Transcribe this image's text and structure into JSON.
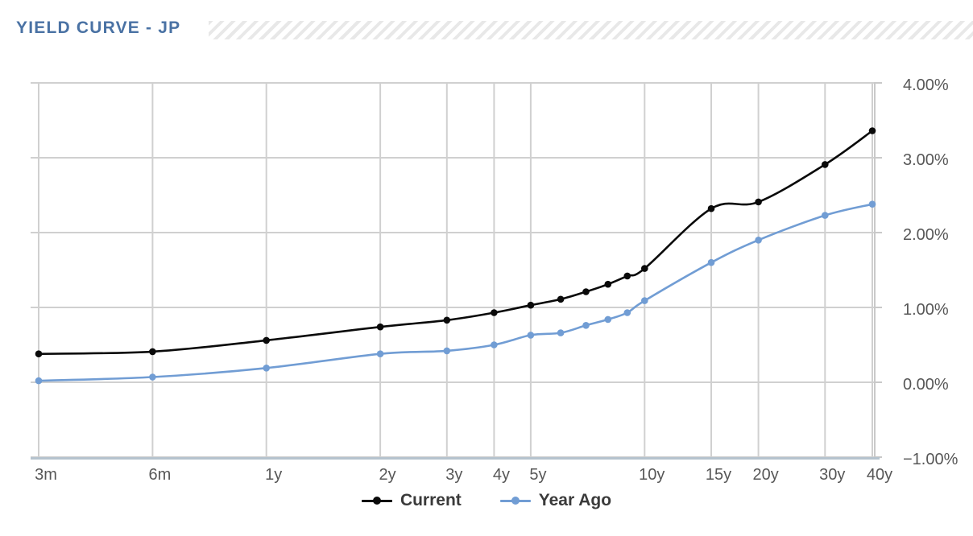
{
  "header": {
    "title": "YIELD CURVE - JP"
  },
  "chart_data": {
    "type": "line",
    "title": "YIELD CURVE - JP",
    "x_scale": "log",
    "grid": true,
    "legend_position": "bottom",
    "categories": [
      "3m",
      "6m",
      "1y",
      "2y",
      "3y",
      "4y",
      "5y",
      "6y",
      "7y",
      "8y",
      "9y",
      "10y",
      "15y",
      "20y",
      "30y",
      "40y"
    ],
    "x_years": [
      0.25,
      0.5,
      1,
      2,
      3,
      4,
      5,
      6,
      7,
      8,
      9,
      10,
      15,
      20,
      30,
      40
    ],
    "series": [
      {
        "name": "Current",
        "color": "#0a0a0a",
        "values": [
          0.38,
          0.41,
          0.56,
          0.74,
          0.83,
          0.93,
          1.03,
          1.11,
          1.21,
          1.31,
          1.42,
          1.52,
          2.32,
          2.41,
          2.91,
          3.36
        ]
      },
      {
        "name": "Year Ago",
        "color": "#719dd4",
        "values": [
          0.02,
          0.07,
          0.19,
          0.38,
          0.42,
          0.5,
          0.63,
          0.66,
          0.76,
          0.84,
          0.93,
          1.09,
          1.6,
          1.9,
          2.23,
          2.38
        ]
      }
    ],
    "x_axis": {
      "labels": [
        "3m",
        "6m",
        "1y",
        "2y",
        "3y",
        "4y",
        "5y",
        "10y",
        "15y",
        "20y",
        "30y",
        "40y"
      ],
      "years": [
        0.25,
        0.5,
        1,
        2,
        3,
        4,
        5,
        10,
        15,
        20,
        30,
        40
      ]
    },
    "y_axis": {
      "labels": [
        "4.00%",
        "3.00%",
        "2.00%",
        "1.00%",
        "0.00%",
        "−1.00%"
      ],
      "values": [
        4,
        3,
        2,
        1,
        0,
        -1
      ],
      "side": "right"
    },
    "ylim": [
      -1,
      4
    ]
  },
  "colors": {
    "title": "#4a72a4",
    "gridline": "#d0d0d0",
    "right_axis": "#c9c9c9",
    "bottom_axis": "#b5c3ce",
    "tick_label": "#575757",
    "legend_label": "#3a3a3a",
    "stripe": "#e8e8e8"
  }
}
